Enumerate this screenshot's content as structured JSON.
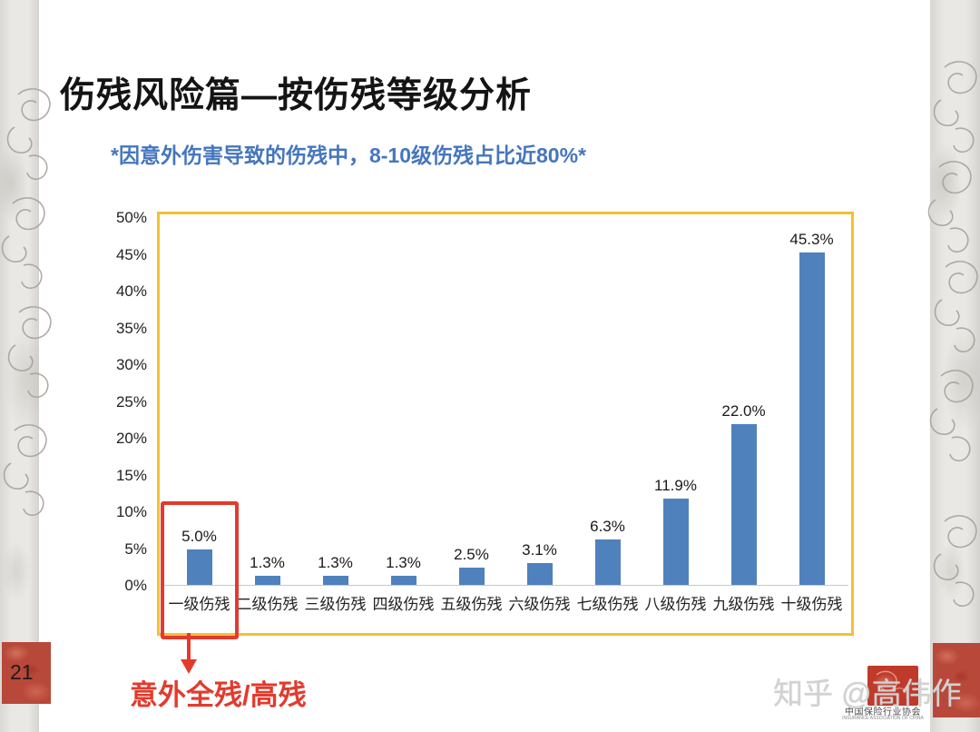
{
  "slide": {
    "title": "伤残风险篇—按伤残等级分析",
    "subtitle": "*因意外伤害导致的伤残中，8-10级伤残占比近80%*",
    "page_number": "21",
    "annotation_label": "意外全残/高残",
    "watermark": "知乎 @高伟作",
    "logo": {
      "name_cn": "中国保险行业协会",
      "name_en": "INSURANCE ASSOCIATION OF CHINA"
    }
  },
  "colors": {
    "bar": "#4f81bd",
    "chart_border": "#f2c230",
    "accent_red": "#e23b2e",
    "subtitle_blue": "#4576be",
    "corner_red": "#b8483a"
  },
  "chart_data": {
    "type": "bar",
    "title": "",
    "xlabel": "",
    "ylabel": "",
    "categories": [
      "一级伤残",
      "二级伤残",
      "三级伤残",
      "四级伤残",
      "五级伤残",
      "六级伤残",
      "七级伤残",
      "八级伤残",
      "九级伤残",
      "十级伤残"
    ],
    "values": [
      5.0,
      1.3,
      1.3,
      1.3,
      2.5,
      3.1,
      6.3,
      11.9,
      22.0,
      45.3
    ],
    "value_labels": [
      "5.0%",
      "1.3%",
      "1.3%",
      "1.3%",
      "2.5%",
      "3.1%",
      "6.3%",
      "11.9%",
      "22.0%",
      "45.3%"
    ],
    "yticks": [
      "50%",
      "45%",
      "40%",
      "35%",
      "30%",
      "25%",
      "20%",
      "15%",
      "10%",
      "5%",
      "0%"
    ],
    "ylim": [
      0,
      50
    ],
    "grid": false,
    "legend": null,
    "highlight_index": 0
  }
}
